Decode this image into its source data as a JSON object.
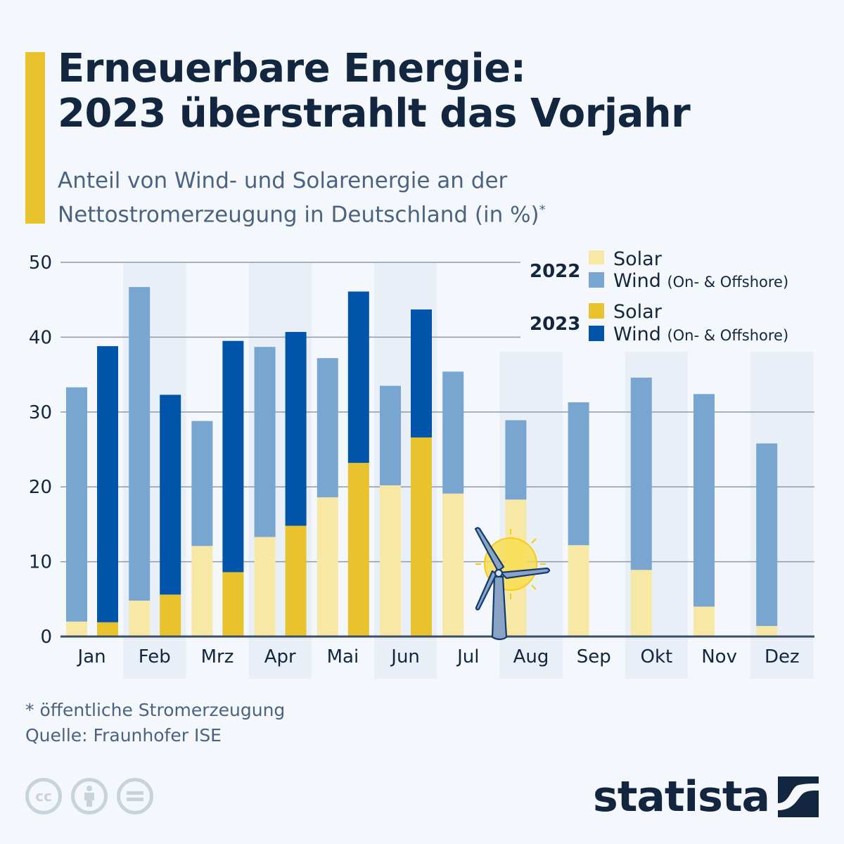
{
  "header": {
    "title_line1": "Erneuerbare Energie:",
    "title_line2": "2023 überstrahlt das Vorjahr",
    "subtitle_line1": "Anteil von Wind- und Solarenergie an der",
    "subtitle_line2": "Nettostromerzeugung in Deutschland (in %)",
    "subtitle_mark": "*"
  },
  "colors": {
    "accent": "#e9c32d",
    "solar_2022": "#f7e8a6",
    "wind_2022": "#78a6d1",
    "solar_2023": "#e9c32d",
    "wind_2023": "#0054aa",
    "text": "#13263f",
    "band": "#e9eff7"
  },
  "chart_data": {
    "type": "bar",
    "stacked": true,
    "title": "Anteil von Wind- und Solarenergie an der Nettostromerzeugung in Deutschland (in %)",
    "xlabel": "",
    "ylabel": "",
    "ylim": [
      0,
      50
    ],
    "yticks": [
      0,
      10,
      20,
      30,
      40,
      50
    ],
    "grid": true,
    "legend_position": "top-right",
    "categories": [
      "Jan",
      "Feb",
      "Mrz",
      "Apr",
      "Mai",
      "Jun",
      "Jul",
      "Aug",
      "Sep",
      "Okt",
      "Nov",
      "Dez"
    ],
    "series": [
      {
        "name": "Solar",
        "year": "2022",
        "stack": "2022",
        "values": [
          2.0,
          4.8,
          12.1,
          13.3,
          18.6,
          20.2,
          19.1,
          18.3,
          12.2,
          8.9,
          4.0,
          1.4
        ]
      },
      {
        "name": "Wind (On- & Offshore)",
        "year": "2022",
        "stack": "2022",
        "values": [
          31.3,
          41.9,
          16.7,
          25.4,
          18.6,
          13.3,
          16.3,
          10.6,
          19.1,
          25.7,
          28.4,
          24.4
        ]
      },
      {
        "name": "Solar",
        "year": "2023",
        "stack": "2023",
        "values": [
          1.9,
          5.6,
          8.6,
          14.8,
          23.2,
          26.6,
          null,
          null,
          null,
          null,
          null,
          null
        ]
      },
      {
        "name": "Wind (On- & Offshore)",
        "year": "2023",
        "stack": "2023",
        "values": [
          36.9,
          26.7,
          30.9,
          25.9,
          22.9,
          17.1,
          null,
          null,
          null,
          null,
          null,
          null
        ]
      }
    ],
    "totals_2022": [
      33.3,
      46.7,
      28.8,
      38.7,
      37.2,
      33.5,
      35.4,
      28.9,
      31.3,
      34.6,
      32.4,
      25.8
    ],
    "totals_2023": [
      38.8,
      32.3,
      39.5,
      40.7,
      46.1,
      43.7,
      null,
      null,
      null,
      null,
      null,
      null
    ]
  },
  "legend": {
    "groups": [
      {
        "year": "2022",
        "items": [
          {
            "label": "Solar",
            "note": ""
          },
          {
            "label": "Wind",
            "note": "(On- & Offshore)"
          }
        ]
      },
      {
        "year": "2023",
        "items": [
          {
            "label": "Solar",
            "note": ""
          },
          {
            "label": "Wind",
            "note": "(On- & Offshore)"
          }
        ]
      }
    ]
  },
  "footer": {
    "footnote": "* öffentliche Stromerzeugung",
    "source": "Quelle: Fraunhofer ISE",
    "license_icons": [
      "cc-icon",
      "attribution-icon",
      "no-derivatives-icon"
    ],
    "cc_label": "cc",
    "logo_text": "statista"
  }
}
